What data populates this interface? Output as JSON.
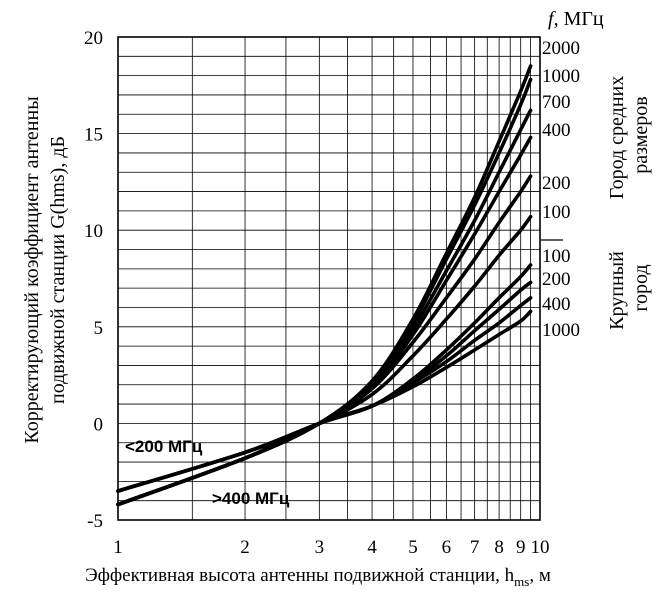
{
  "chart_data": {
    "type": "line",
    "ylabel_line1": "Корректирующий коэффициент антенны",
    "ylabel_line2": "подвижной станции G(hms), дБ",
    "xlabel_main": "Эффективная высота антенны подвижной станции, h",
    "xlabel_sub": "ms",
    "xlabel_unit": ", м",
    "x_scale": "log",
    "xlim": [
      1,
      10
    ],
    "ylim": [
      -5,
      20
    ],
    "grid": true,
    "x_ticks": [
      1,
      2,
      3,
      4,
      5,
      6,
      7,
      8,
      9,
      10
    ],
    "x_tick_labels": [
      "1",
      "2",
      "3",
      "4",
      "5",
      "6",
      "7",
      "8",
      "9",
      "10"
    ],
    "y_ticks": [
      -5,
      0,
      5,
      10,
      15,
      20
    ],
    "y_tick_labels": [
      "-5",
      "0",
      "5",
      "10",
      "15",
      "20"
    ],
    "freq_header_symbol": "f",
    "freq_header_unit": ", МГц",
    "group_medium_city": "Город средних размеров",
    "group_large_city": "Крупный город",
    "annotation_low": "<200 МГц",
    "annotation_high": ">400 МГц",
    "series": [
      {
        "name": "2000",
        "group": "medium",
        "x": [
          1,
          2,
          3,
          4,
          5,
          6,
          7,
          8,
          9,
          9.5
        ],
        "y": [
          -4.2,
          -1.8,
          0,
          2.2,
          5.4,
          8.8,
          11.7,
          14.6,
          17.2,
          18.5
        ]
      },
      {
        "name": "1000",
        "group": "medium",
        "x": [
          1,
          2,
          3,
          4,
          5,
          6,
          7,
          8,
          9,
          9.5
        ],
        "y": [
          -4.2,
          -1.8,
          0,
          2.1,
          5.2,
          8.5,
          11.3,
          14.0,
          16.5,
          17.8
        ]
      },
      {
        "name": "700",
        "group": "medium",
        "x": [
          1,
          2,
          3,
          4,
          5,
          6,
          7,
          8,
          9,
          9.5
        ],
        "y": [
          -4.2,
          -1.8,
          0,
          2.0,
          4.9,
          7.9,
          10.5,
          13.0,
          15.2,
          16.2
        ]
      },
      {
        "name": "400",
        "group": "medium",
        "x": [
          1,
          2,
          3,
          4,
          5,
          6,
          7,
          8,
          9,
          9.5
        ],
        "y": [
          -4.2,
          -1.8,
          0,
          1.9,
          4.6,
          7.4,
          9.8,
          12.0,
          13.9,
          14.8
        ]
      },
      {
        "name": "200",
        "group": "medium",
        "x": [
          1,
          2,
          3,
          4,
          5,
          6,
          7,
          8,
          9,
          9.5
        ],
        "y": [
          -3.5,
          -1.5,
          0,
          1.8,
          4.2,
          6.5,
          8.5,
          10.4,
          12.0,
          12.8
        ]
      },
      {
        "name": "100",
        "group": "medium",
        "x": [
          1,
          2,
          3,
          4,
          5,
          6,
          7,
          8,
          9,
          9.5
        ],
        "y": [
          -3.5,
          -1.5,
          0,
          1.5,
          3.5,
          5.4,
          7.1,
          8.7,
          10.0,
          10.7
        ]
      },
      {
        "name": "100",
        "group": "large",
        "x": [
          1,
          2,
          3,
          4,
          5,
          6,
          7,
          8,
          9,
          9.5
        ],
        "y": [
          -3.5,
          -1.5,
          0,
          0.9,
          2.3,
          3.8,
          5.2,
          6.5,
          7.6,
          8.2
        ]
      },
      {
        "name": "200",
        "group": "large",
        "x": [
          1,
          2,
          3,
          4,
          5,
          6,
          7,
          8,
          9,
          9.5
        ],
        "y": [
          -3.5,
          -1.5,
          0,
          0.9,
          2.2,
          3.5,
          4.8,
          5.9,
          6.9,
          7.3
        ]
      },
      {
        "name": "400",
        "group": "large",
        "x": [
          1,
          2,
          3,
          4,
          5,
          6,
          7,
          8,
          9,
          9.5
        ],
        "y": [
          -4.2,
          -1.8,
          0,
          0.9,
          2.1,
          3.2,
          4.3,
          5.2,
          6.1,
          6.5
        ]
      },
      {
        "name": "1000",
        "group": "large",
        "x": [
          1,
          2,
          3,
          4,
          5,
          6,
          7,
          8,
          9,
          9.5
        ],
        "y": [
          -4.2,
          -1.8,
          0,
          0.9,
          1.9,
          2.9,
          3.8,
          4.6,
          5.3,
          5.8
        ]
      }
    ]
  }
}
